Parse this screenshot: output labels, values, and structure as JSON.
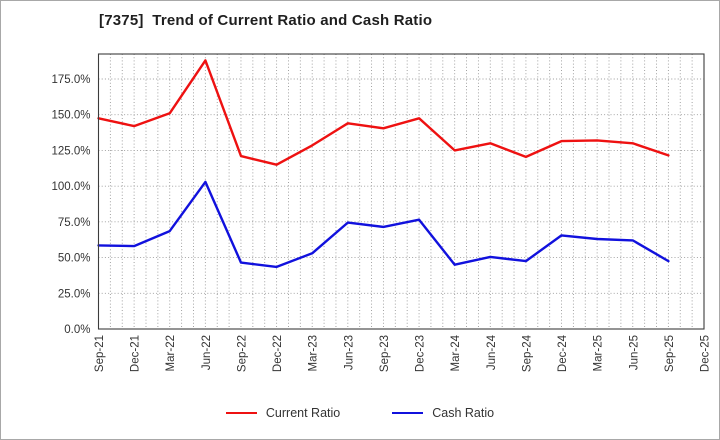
{
  "chart": {
    "title": "[7375]  Trend of Current Ratio and Cash Ratio",
    "legend": [
      {
        "label": "Current Ratio",
        "color": "#ee1111"
      },
      {
        "label": "Cash Ratio",
        "color": "#1111dd"
      }
    ]
  },
  "chart_data": {
    "type": "line",
    "title": "[7375]  Trend of Current Ratio and Cash Ratio",
    "categories": [
      "Sep-21",
      "Dec-21",
      "Mar-22",
      "Jun-22",
      "Sep-22",
      "Dec-22",
      "Mar-23",
      "Jun-23",
      "Sep-23",
      "Dec-23",
      "Mar-24",
      "Jun-24",
      "Sep-24",
      "Dec-24",
      "Mar-25",
      "Jun-25",
      "Sep-25",
      "Dec-25"
    ],
    "series": [
      {
        "name": "Current Ratio",
        "color": "#ee1111",
        "unit": "%",
        "values": [
          147.5,
          142,
          151,
          188,
          121,
          115,
          128.5,
          144,
          140.5,
          147.5,
          125,
          130,
          120.5,
          131.5,
          132,
          130,
          121.5,
          null
        ]
      },
      {
        "name": "Cash Ratio",
        "color": "#1111dd",
        "unit": "%",
        "values": [
          58.5,
          58,
          68.5,
          103,
          46.5,
          43.5,
          53,
          74.5,
          71.5,
          76.5,
          45,
          50.5,
          47.5,
          65.5,
          63,
          62,
          47.5,
          null
        ]
      }
    ],
    "xlabel": "",
    "ylabel": "",
    "ylim": [
      0,
      192.5
    ],
    "yticks": {
      "min": 0,
      "max": 175,
      "step": 25,
      "format": "percent-one-decimal"
    },
    "ytick_labels": [
      "0.0%",
      "25.0%",
      "50.0%",
      "75.0%",
      "100.0%",
      "125.0%",
      "150.0%",
      "175.0%"
    ],
    "grid": true,
    "x_minor_divisions_per_interval": 3,
    "legend_position": "bottom-center",
    "styles": {
      "grid_color": "#999999",
      "axis_color": "#3c3c3c",
      "tick_label_color": "#333333",
      "line_width": 2.4
    }
  }
}
